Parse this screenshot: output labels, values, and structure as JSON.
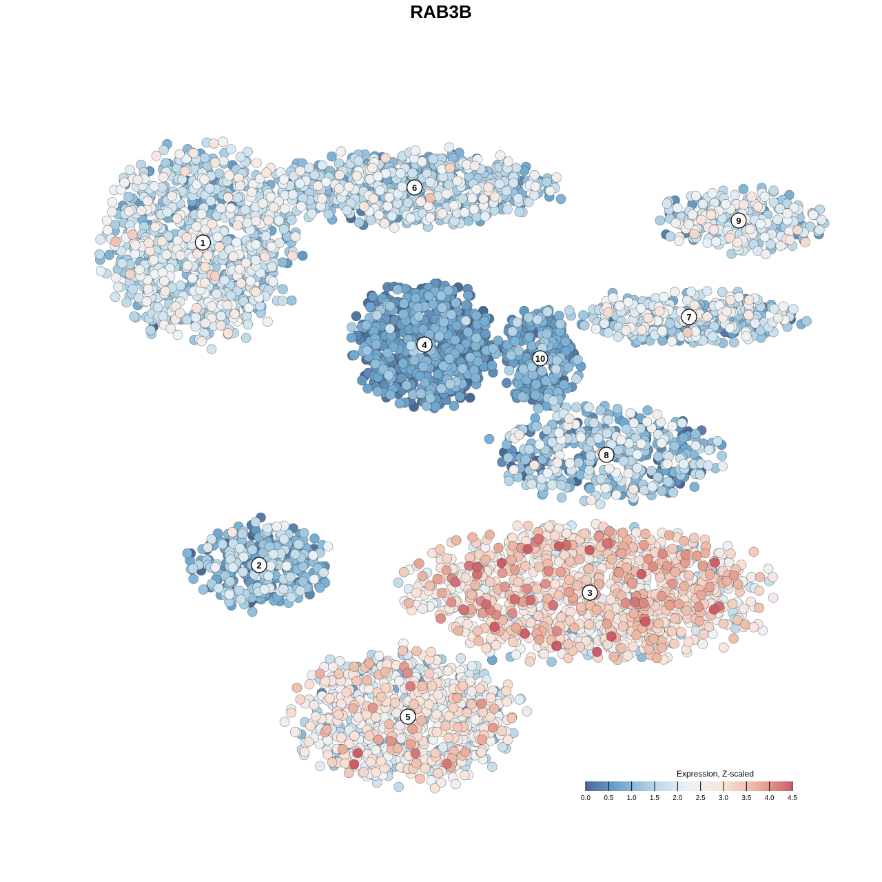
{
  "chart_data": {
    "type": "scatter",
    "title": "RAB3B",
    "xlabel": "",
    "ylabel": "",
    "grid": false,
    "legend": {
      "title": "Expression, Z-scaled",
      "ticks": [
        "0.0",
        "0.5",
        "1.0",
        "1.5",
        "2.0",
        "2.5",
        "3.0",
        "3.5",
        "4.0",
        "4.5"
      ],
      "range": [
        0,
        4.5
      ],
      "placement": "bottom-right",
      "palette": [
        "#4a6a96",
        "#6fa8d0",
        "#b7d6e8",
        "#eef3f6",
        "#f8e2d8",
        "#ebb09d",
        "#cd5c66"
      ]
    },
    "clusters": [
      {
        "label": "1",
        "cx": -0.72,
        "cy": 0.72,
        "rx": 0.3,
        "ry": 0.36,
        "mean": 1.6,
        "sd": 0.6,
        "n": 900
      },
      {
        "label": "6",
        "cx": -0.08,
        "cy": 0.92,
        "rx": 0.42,
        "ry": 0.14,
        "mean": 1.4,
        "sd": 0.6,
        "n": 700
      },
      {
        "label": "4",
        "cx": -0.05,
        "cy": 0.35,
        "rx": 0.22,
        "ry": 0.23,
        "mean": 0.5,
        "sd": 0.4,
        "n": 650
      },
      {
        "label": "10",
        "cx": 0.3,
        "cy": 0.3,
        "rx": 0.12,
        "ry": 0.18,
        "mean": 0.6,
        "sd": 0.4,
        "n": 260
      },
      {
        "label": "9",
        "cx": 0.9,
        "cy": 0.8,
        "rx": 0.25,
        "ry": 0.12,
        "mean": 1.7,
        "sd": 0.6,
        "n": 240
      },
      {
        "label": "7",
        "cx": 0.75,
        "cy": 0.45,
        "rx": 0.36,
        "ry": 0.1,
        "mean": 1.5,
        "sd": 0.6,
        "n": 330
      },
      {
        "label": "8",
        "cx": 0.5,
        "cy": -0.05,
        "rx": 0.35,
        "ry": 0.18,
        "mean": 1.1,
        "sd": 0.7,
        "n": 420
      },
      {
        "label": "2",
        "cx": -0.55,
        "cy": -0.45,
        "rx": 0.22,
        "ry": 0.16,
        "mean": 1.0,
        "sd": 0.6,
        "n": 330
      },
      {
        "label": "3",
        "cx": 0.45,
        "cy": -0.55,
        "rx": 0.55,
        "ry": 0.25,
        "mean": 2.8,
        "sd": 0.7,
        "n": 1200
      },
      {
        "label": "5",
        "cx": -0.1,
        "cy": -1.0,
        "rx": 0.35,
        "ry": 0.25,
        "mean": 2.3,
        "sd": 0.7,
        "n": 800
      }
    ]
  }
}
